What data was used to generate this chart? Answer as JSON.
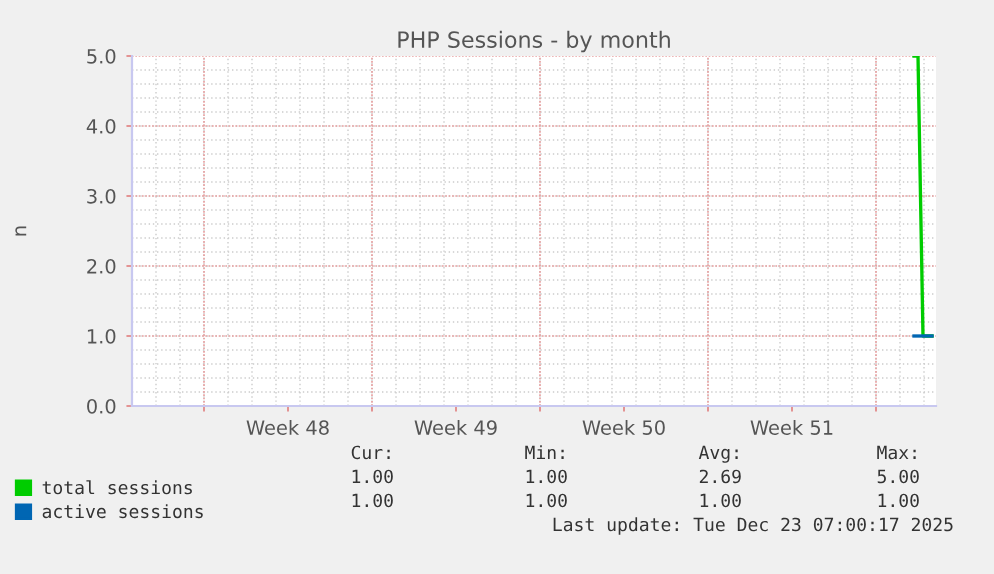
{
  "chart_data": {
    "type": "line",
    "title": "PHP Sessions - by month",
    "ylabel": "n",
    "xlim": [
      "2025-11-21T00:00",
      "2025-12-24T12:00"
    ],
    "xticks": [
      {
        "value": "2025-11-24",
        "label": null
      },
      {
        "value": "2025-11-27T12:00",
        "label": "Week 48"
      },
      {
        "value": "2025-12-01",
        "label": null
      },
      {
        "value": "2025-12-04T12:00",
        "label": "Week 49"
      },
      {
        "value": "2025-12-08",
        "label": null
      },
      {
        "value": "2025-12-11T12:00",
        "label": "Week 50"
      },
      {
        "value": "2025-12-15",
        "label": null
      },
      {
        "value": "2025-12-18T12:00",
        "label": "Week 51"
      },
      {
        "value": "2025-12-22",
        "label": null
      }
    ],
    "ylim": [
      0,
      5
    ],
    "yticks": [
      {
        "value": 0,
        "label": "0.0"
      },
      {
        "value": 1,
        "label": "1.0"
      },
      {
        "value": 2,
        "label": "2.0"
      },
      {
        "value": 3,
        "label": "3.0"
      },
      {
        "value": 4,
        "label": "4.0"
      },
      {
        "value": 5,
        "label": "5.0"
      }
    ],
    "grid": true,
    "legend": "bottom",
    "series": [
      {
        "name": "total sessions",
        "color": "#00cc00",
        "x": [
          "2025-12-23T14:00",
          "2025-12-23T18:00",
          "2025-12-23T23:00",
          "2025-12-24T08:00"
        ],
        "values": [
          5,
          5,
          1,
          1
        ]
      },
      {
        "name": "active sessions",
        "color": "#0066b3",
        "x": [
          "2025-12-23T14:00",
          "2025-12-24T08:00"
        ],
        "values": [
          1,
          1
        ]
      }
    ],
    "annotations": [
      "Cur:",
      "Min:",
      "Avg:",
      "Max:",
      "1.00",
      "1.00",
      "2.69",
      "5.00",
      "1.00",
      "1.00",
      "1.00",
      "1.00",
      "Last update: Tue Dec 23 07:00:17 2025"
    ]
  }
}
